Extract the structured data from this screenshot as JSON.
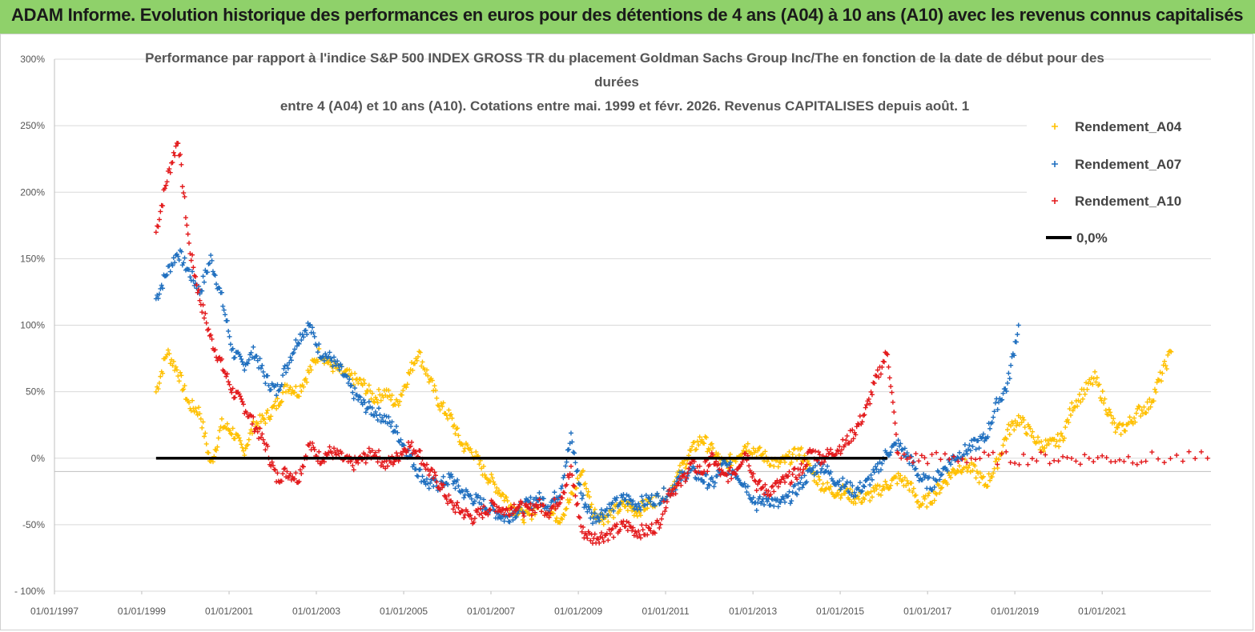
{
  "banner": {
    "title": "ADAM Informe. Evolution historique des performances en euros pour des détentions de 4 ans (A04) à 10 ans (A10) avec les revenus connus capitalisés",
    "background": "#8fd16a"
  },
  "chart_data": {
    "type": "scatter",
    "title_lines": [
      "Performance par rapport à l'indice S&P 500 INDEX GROSS TR  du placement Goldman Sachs Group Inc/The en fonction de la date de début pour des",
      "durées",
      "entre 4 (A04) et 10 ans (A10).  Cotations entre mai. 1999 et févr. 2026. Revenus CAPITALISES depuis août. 1"
    ],
    "x_axis": {
      "type": "date",
      "range": [
        "1997-01-01",
        "2023-06-30"
      ],
      "tick_labels": [
        "01/01/1997",
        "01/01/1999",
        "01/01/2001",
        "01/01/2003",
        "01/01/2005",
        "01/01/2007",
        "01/01/2009",
        "01/01/2011",
        "01/01/2013",
        "01/01/2015",
        "01/01/2017",
        "01/01/2019",
        "01/01/2021"
      ]
    },
    "y_axis": {
      "range": [
        -100,
        300
      ],
      "ticks": [
        -100,
        -50,
        0,
        50,
        100,
        150,
        200,
        250,
        300
      ],
      "tick_labels": [
        "- 100%",
        "-50%",
        "0%",
        "50%",
        "100%",
        "150%",
        "200%",
        "250%",
        "300%"
      ]
    },
    "grid": "horizontal",
    "legend_position": "top-right",
    "series": [
      {
        "name": "Rendement_A04",
        "color": "#ffc000",
        "marker": "+",
        "points": [
          [
            "1999-05-01",
            50
          ],
          [
            "1999-08-01",
            80
          ],
          [
            "1999-11-01",
            65
          ],
          [
            "2000-02-01",
            40
          ],
          [
            "2000-05-01",
            35
          ],
          [
            "2000-08-01",
            -5
          ],
          [
            "2000-11-01",
            25
          ],
          [
            "2001-02-01",
            20
          ],
          [
            "2001-05-01",
            5
          ],
          [
            "2001-08-01",
            25
          ],
          [
            "2001-11-01",
            30
          ],
          [
            "2002-02-01",
            40
          ],
          [
            "2002-05-01",
            55
          ],
          [
            "2002-08-01",
            50
          ],
          [
            "2002-11-01",
            65
          ],
          [
            "2003-02-01",
            80
          ],
          [
            "2003-05-01",
            70
          ],
          [
            "2003-08-01",
            65
          ],
          [
            "2003-11-01",
            60
          ],
          [
            "2004-02-01",
            55
          ],
          [
            "2004-05-01",
            45
          ],
          [
            "2004-08-01",
            50
          ],
          [
            "2004-11-01",
            40
          ],
          [
            "2005-02-01",
            60
          ],
          [
            "2005-05-01",
            80
          ],
          [
            "2005-08-01",
            60
          ],
          [
            "2005-11-01",
            40
          ],
          [
            "2006-02-01",
            30
          ],
          [
            "2006-05-01",
            10
          ],
          [
            "2006-08-01",
            5
          ],
          [
            "2006-11-01",
            -10
          ],
          [
            "2007-02-01",
            -20
          ],
          [
            "2007-05-01",
            -30
          ],
          [
            "2007-08-01",
            -40
          ],
          [
            "2007-11-01",
            -45
          ],
          [
            "2008-02-01",
            -35
          ],
          [
            "2008-05-01",
            -40
          ],
          [
            "2008-08-01",
            -45
          ],
          [
            "2008-11-01",
            -30
          ],
          [
            "2009-02-01",
            -10
          ],
          [
            "2009-05-01",
            -40
          ],
          [
            "2009-08-01",
            -45
          ],
          [
            "2009-11-01",
            -40
          ],
          [
            "2010-02-01",
            -35
          ],
          [
            "2010-05-01",
            -40
          ],
          [
            "2010-08-01",
            -35
          ],
          [
            "2010-11-01",
            -30
          ],
          [
            "2011-02-01",
            -25
          ],
          [
            "2011-05-01",
            -10
          ],
          [
            "2011-08-01",
            5
          ],
          [
            "2011-11-01",
            15
          ],
          [
            "2012-02-01",
            5
          ],
          [
            "2012-05-01",
            -5
          ],
          [
            "2012-08-01",
            0
          ],
          [
            "2012-11-01",
            10
          ],
          [
            "2013-02-01",
            5
          ],
          [
            "2013-05-01",
            0
          ],
          [
            "2013-08-01",
            -5
          ],
          [
            "2013-11-01",
            0
          ],
          [
            "2014-02-01",
            5
          ],
          [
            "2014-05-01",
            -10
          ],
          [
            "2014-08-01",
            -20
          ],
          [
            "2014-11-01",
            -25
          ],
          [
            "2015-02-01",
            -25
          ],
          [
            "2015-05-01",
            -30
          ],
          [
            "2015-08-01",
            -30
          ],
          [
            "2015-11-01",
            -25
          ],
          [
            "2016-02-01",
            -20
          ],
          [
            "2016-05-01",
            -15
          ],
          [
            "2016-08-01",
            -20
          ],
          [
            "2016-11-01",
            -35
          ],
          [
            "2017-02-01",
            -30
          ],
          [
            "2017-05-01",
            -20
          ],
          [
            "2017-08-01",
            -10
          ],
          [
            "2017-11-01",
            -5
          ],
          [
            "2018-02-01",
            -10
          ],
          [
            "2018-05-01",
            -20
          ],
          [
            "2018-08-01",
            -5
          ],
          [
            "2018-11-01",
            20
          ],
          [
            "2019-02-01",
            30
          ],
          [
            "2019-05-01",
            20
          ],
          [
            "2019-08-01",
            10
          ],
          [
            "2019-11-01",
            10
          ],
          [
            "2020-02-01",
            15
          ],
          [
            "2020-05-01",
            40
          ],
          [
            "2020-08-01",
            50
          ],
          [
            "2020-11-01",
            60
          ],
          [
            "2021-02-01",
            40
          ],
          [
            "2021-05-01",
            20
          ],
          [
            "2021-08-01",
            25
          ],
          [
            "2021-11-01",
            35
          ],
          [
            "2022-02-01",
            40
          ],
          [
            "2022-05-01",
            60
          ],
          [
            "2022-08-01",
            80
          ]
        ]
      },
      {
        "name": "Rendement_A07",
        "color": "#1f6fbf",
        "marker": "+",
        "points": [
          [
            "1999-05-01",
            120
          ],
          [
            "1999-08-01",
            140
          ],
          [
            "1999-11-01",
            155
          ],
          [
            "2000-02-01",
            140
          ],
          [
            "2000-05-01",
            125
          ],
          [
            "2000-08-01",
            150
          ],
          [
            "2000-11-01",
            120
          ],
          [
            "2001-02-01",
            80
          ],
          [
            "2001-05-01",
            70
          ],
          [
            "2001-08-01",
            80
          ],
          [
            "2001-11-01",
            60
          ],
          [
            "2002-02-01",
            50
          ],
          [
            "2002-05-01",
            70
          ],
          [
            "2002-08-01",
            90
          ],
          [
            "2002-11-01",
            100
          ],
          [
            "2003-02-01",
            80
          ],
          [
            "2003-05-01",
            75
          ],
          [
            "2003-08-01",
            65
          ],
          [
            "2003-11-01",
            50
          ],
          [
            "2004-02-01",
            40
          ],
          [
            "2004-05-01",
            35
          ],
          [
            "2004-08-01",
            30
          ],
          [
            "2004-11-01",
            20
          ],
          [
            "2005-02-01",
            5
          ],
          [
            "2005-05-01",
            -10
          ],
          [
            "2005-08-01",
            -20
          ],
          [
            "2005-11-01",
            -20
          ],
          [
            "2006-02-01",
            -15
          ],
          [
            "2006-05-01",
            -25
          ],
          [
            "2006-08-01",
            -30
          ],
          [
            "2006-11-01",
            -35
          ],
          [
            "2007-02-01",
            -40
          ],
          [
            "2007-05-01",
            -45
          ],
          [
            "2007-08-01",
            -40
          ],
          [
            "2007-11-01",
            -35
          ],
          [
            "2008-02-01",
            -30
          ],
          [
            "2008-05-01",
            -35
          ],
          [
            "2008-08-01",
            -25
          ],
          [
            "2008-11-01",
            15
          ],
          [
            "2009-02-01",
            -30
          ],
          [
            "2009-05-01",
            -45
          ],
          [
            "2009-08-01",
            -40
          ],
          [
            "2009-11-01",
            -35
          ],
          [
            "2010-02-01",
            -30
          ],
          [
            "2010-05-01",
            -35
          ],
          [
            "2010-08-01",
            -32
          ],
          [
            "2010-11-01",
            -30
          ],
          [
            "2011-02-01",
            -25
          ],
          [
            "2011-05-01",
            -15
          ],
          [
            "2011-08-01",
            -10
          ],
          [
            "2011-11-01",
            -15
          ],
          [
            "2012-02-01",
            -20
          ],
          [
            "2012-05-01",
            -5
          ],
          [
            "2012-08-01",
            -10
          ],
          [
            "2012-11-01",
            -20
          ],
          [
            "2013-02-01",
            -35
          ],
          [
            "2013-05-01",
            -30
          ],
          [
            "2013-08-01",
            -35
          ],
          [
            "2013-11-01",
            -30
          ],
          [
            "2014-02-01",
            -20
          ],
          [
            "2014-05-01",
            -10
          ],
          [
            "2014-08-01",
            -5
          ],
          [
            "2014-11-01",
            -15
          ],
          [
            "2015-02-01",
            -20
          ],
          [
            "2015-05-01",
            -25
          ],
          [
            "2015-08-01",
            -20
          ],
          [
            "2015-11-01",
            -10
          ],
          [
            "2016-02-01",
            5
          ],
          [
            "2016-05-01",
            10
          ],
          [
            "2016-08-01",
            0
          ],
          [
            "2016-11-01",
            -15
          ],
          [
            "2017-02-01",
            -20
          ],
          [
            "2017-05-01",
            -10
          ],
          [
            "2017-08-01",
            0
          ],
          [
            "2017-11-01",
            5
          ],
          [
            "2018-02-01",
            10
          ],
          [
            "2018-05-01",
            15
          ],
          [
            "2018-08-01",
            40
          ],
          [
            "2018-11-01",
            55
          ],
          [
            "2019-02-01",
            100
          ]
        ]
      },
      {
        "name": "Rendement_A10",
        "color": "#e31a1c",
        "marker": "+",
        "points": [
          [
            "1999-05-01",
            170
          ],
          [
            "1999-08-01",
            210
          ],
          [
            "1999-11-01",
            240
          ],
          [
            "2000-02-01",
            160
          ],
          [
            "2000-05-01",
            120
          ],
          [
            "2000-08-01",
            90
          ],
          [
            "2000-11-01",
            70
          ],
          [
            "2001-02-01",
            50
          ],
          [
            "2001-05-01",
            40
          ],
          [
            "2001-08-01",
            25
          ],
          [
            "2001-11-01",
            10
          ],
          [
            "2002-02-01",
            -15
          ],
          [
            "2002-05-01",
            -10
          ],
          [
            "2002-08-01",
            -15
          ],
          [
            "2002-11-01",
            10
          ],
          [
            "2003-02-01",
            0
          ],
          [
            "2003-05-01",
            5
          ],
          [
            "2003-08-01",
            0
          ],
          [
            "2003-11-01",
            -5
          ],
          [
            "2004-02-01",
            0
          ],
          [
            "2004-05-01",
            5
          ],
          [
            "2004-08-01",
            -5
          ],
          [
            "2004-11-01",
            0
          ],
          [
            "2005-02-01",
            10
          ],
          [
            "2005-05-01",
            5
          ],
          [
            "2005-08-01",
            -10
          ],
          [
            "2005-11-01",
            -20
          ],
          [
            "2006-02-01",
            -35
          ],
          [
            "2006-05-01",
            -40
          ],
          [
            "2006-08-01",
            -45
          ],
          [
            "2006-11-01",
            -40
          ],
          [
            "2007-02-01",
            -35
          ],
          [
            "2007-05-01",
            -40
          ],
          [
            "2007-08-01",
            -35
          ],
          [
            "2007-11-01",
            -40
          ],
          [
            "2008-02-01",
            -35
          ],
          [
            "2008-05-01",
            -40
          ],
          [
            "2008-08-01",
            -30
          ],
          [
            "2008-11-01",
            -10
          ],
          [
            "2009-02-01",
            -55
          ],
          [
            "2009-05-01",
            -60
          ],
          [
            "2009-08-01",
            -58
          ],
          [
            "2009-11-01",
            -55
          ],
          [
            "2010-02-01",
            -50
          ],
          [
            "2010-05-01",
            -55
          ],
          [
            "2010-08-01",
            -55
          ],
          [
            "2010-11-01",
            -50
          ],
          [
            "2011-02-01",
            -25
          ],
          [
            "2011-05-01",
            -20
          ],
          [
            "2011-08-01",
            -5
          ],
          [
            "2011-11-01",
            -10
          ],
          [
            "2012-02-01",
            0
          ],
          [
            "2012-05-01",
            -15
          ],
          [
            "2012-08-01",
            -10
          ],
          [
            "2012-11-01",
            5
          ],
          [
            "2013-02-01",
            -20
          ],
          [
            "2013-05-01",
            -25
          ],
          [
            "2013-08-01",
            -20
          ],
          [
            "2013-11-01",
            -15
          ],
          [
            "2014-02-01",
            -10
          ],
          [
            "2014-05-01",
            5
          ],
          [
            "2014-08-01",
            0
          ],
          [
            "2014-11-01",
            5
          ],
          [
            "2015-02-01",
            10
          ],
          [
            "2015-05-01",
            20
          ],
          [
            "2015-08-01",
            35
          ],
          [
            "2015-11-01",
            60
          ],
          [
            "2016-02-01",
            80
          ],
          [
            "2016-05-01",
            0
          ],
          [
            "2017-01-01",
            0
          ],
          [
            "2018-01-01",
            0
          ],
          [
            "2019-01-01",
            0
          ],
          [
            "2020-01-01",
            0
          ],
          [
            "2021-01-01",
            0
          ],
          [
            "2022-01-01",
            0
          ],
          [
            "2023-06-01",
            0
          ]
        ]
      },
      {
        "name": "0,0%",
        "color": "#000000",
        "style": "line",
        "points": [
          [
            "1999-05-01",
            0
          ],
          [
            "2016-02-01",
            0
          ]
        ]
      }
    ]
  }
}
